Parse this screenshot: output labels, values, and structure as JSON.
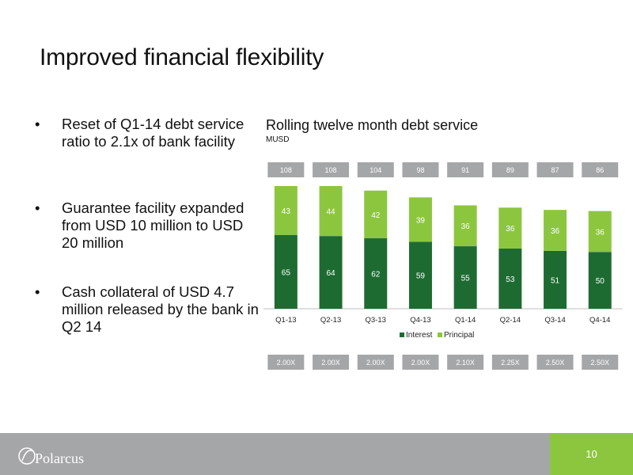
{
  "slide": {
    "title": "Improved financial flexibility",
    "bullets": [
      "Reset of Q1-14 debt service ratio to 2.1x of bank facility",
      "Guarantee facility expanded from USD 10 million to USD 20 million",
      "Cash collateral of USD 4.7 million released by the bank in Q2 14"
    ],
    "bullet_marker": "•"
  },
  "chart_data": {
    "type": "bar",
    "stacked": true,
    "title": "Rolling twelve month debt service",
    "unit_label": "MUSD",
    "categories": [
      "Q1-13",
      "Q2-13",
      "Q3-13",
      "Q4-13",
      "Q1-14",
      "Q2-14",
      "Q3-14",
      "Q4-14"
    ],
    "series": [
      {
        "name": "Interest",
        "values": [
          65,
          64,
          62,
          59,
          55,
          53,
          51,
          50
        ],
        "color": "#1e6b32"
      },
      {
        "name": "Principal",
        "values": [
          43,
          44,
          42,
          39,
          36,
          36,
          36,
          36
        ],
        "color": "#8cc63f"
      }
    ],
    "totals": [
      "108",
      "108",
      "104",
      "98",
      "91",
      "89",
      "87",
      "86"
    ],
    "ratios": [
      "2.00X",
      "2.00X",
      "2.00X",
      "2.00X",
      "2.10X",
      "2.25X",
      "2.50X",
      "2.50X"
    ],
    "ylim": [
      0,
      108
    ],
    "legend_position": "bottom",
    "grid": false
  },
  "footer": {
    "brand": "Polarcus",
    "page_number": "10",
    "colors": {
      "bar": "#a5a6a8",
      "page_box": "#8cc63f"
    }
  }
}
